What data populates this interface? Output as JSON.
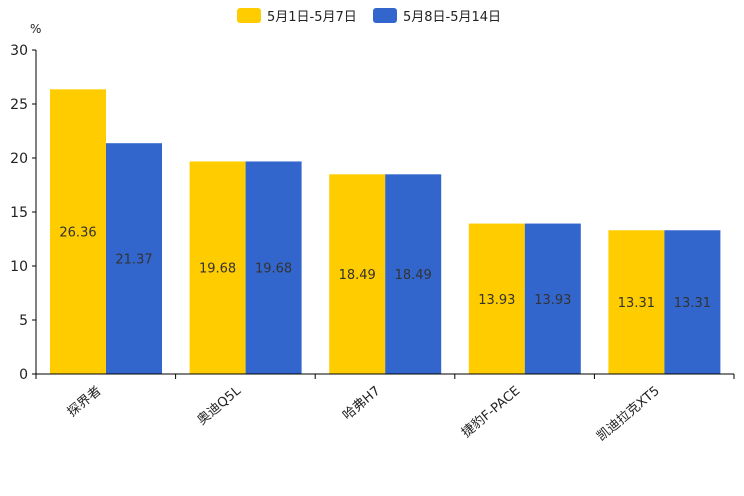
{
  "chart_data": {
    "type": "bar",
    "title": "",
    "xlabel": "",
    "ylabel": "%",
    "ylim": [
      0,
      30
    ],
    "yticks": [
      0,
      5,
      10,
      15,
      20,
      25,
      30
    ],
    "grid": false,
    "legend_position": "top-center",
    "categories": [
      "探界者",
      "奥迪Q5L",
      "哈弗H7",
      "捷豹F-PACE",
      "凯迪拉克XT5"
    ],
    "series": [
      {
        "name": "5月1日-5月7日",
        "color": "#FFCC00",
        "values": [
          26.36,
          19.68,
          18.49,
          13.93,
          13.31
        ]
      },
      {
        "name": "5月8日-5月14日",
        "color": "#3366CC",
        "values": [
          21.37,
          19.68,
          18.49,
          13.93,
          13.31
        ]
      }
    ]
  }
}
